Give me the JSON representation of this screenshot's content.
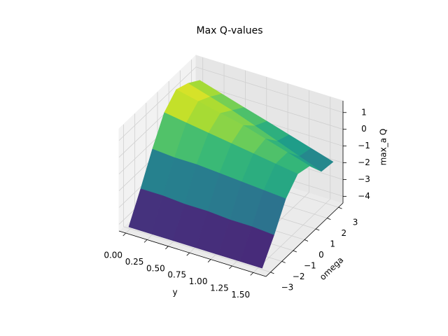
{
  "chart_data": {
    "type": "surface",
    "title": "Max Q-values",
    "x_label": "y",
    "y_label": "omega",
    "z_label": "max_a Q",
    "x": [
      0,
      0.26,
      0.52,
      0.79,
      1.05,
      1.31,
      1.57
    ],
    "y": [
      -3.14,
      -2.09,
      -1.05,
      0,
      1.05,
      2.09,
      3.14
    ],
    "z": [
      [
        -4.2,
        -4.2,
        -4.2,
        -4.2,
        -4.2,
        -4.2,
        -4.2
      ],
      [
        -2.6,
        -2.6,
        -2.7,
        -2.7,
        -2.8,
        -2.8,
        -2.9
      ],
      [
        -0.9,
        -1.0,
        -1.0,
        -1.1,
        -1.2,
        -1.3,
        -1.4
      ],
      [
        0.6,
        0.4,
        0.2,
        0.0,
        -0.2,
        -0.4,
        -0.6
      ],
      [
        1.3,
        1.0,
        0.7,
        0.4,
        0.0,
        -0.4,
        -0.8
      ],
      [
        1.0,
        0.6,
        0.2,
        -0.3,
        -0.8,
        -1.3,
        -1.8
      ],
      [
        0.5,
        0.1,
        -0.3,
        -0.7,
        -1.1,
        -1.5,
        -1.9
      ]
    ],
    "colormap": "viridis",
    "xlim": [
      -0.08,
      1.65
    ],
    "ylim": [
      -3.4,
      3.4
    ],
    "zlim": [
      -4.4,
      1.7
    ],
    "xticks": [
      {
        "value": 0,
        "label": "0.00"
      },
      {
        "value": 0.25,
        "label": "0.25"
      },
      {
        "value": 0.5,
        "label": "0.50"
      },
      {
        "value": 0.75,
        "label": "0.75"
      },
      {
        "value": 1,
        "label": "1.00"
      },
      {
        "value": 1.25,
        "label": "1.25"
      },
      {
        "value": 1.5,
        "label": "1.50"
      }
    ],
    "yticks": [
      {
        "value": -3,
        "label": "−3"
      },
      {
        "value": -2,
        "label": "−2"
      },
      {
        "value": -1,
        "label": "−1"
      },
      0,
      1,
      2,
      3
    ],
    "zticks": [
      {
        "value": -4,
        "label": "−4"
      },
      {
        "value": -3,
        "label": "−3"
      },
      {
        "value": -2,
        "label": "−2"
      },
      {
        "value": -1,
        "label": "−1"
      },
      0,
      1
    ],
    "grid": true
  }
}
